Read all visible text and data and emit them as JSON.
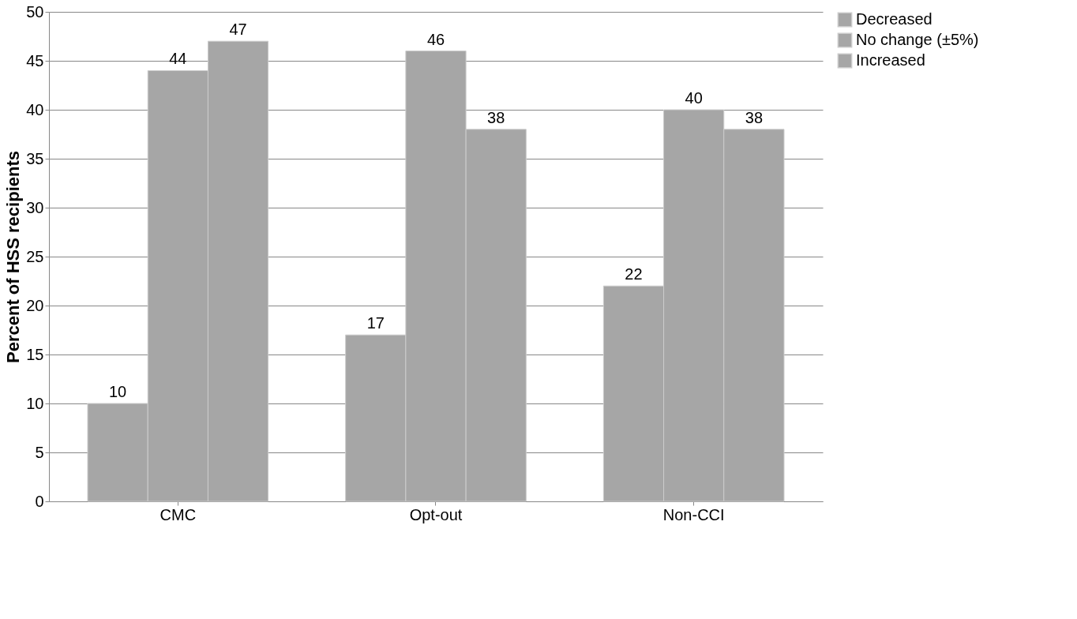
{
  "chart_data": {
    "type": "bar",
    "ylabel": "Percent of HSS recipients",
    "categories": [
      "CMC",
      "Opt-out",
      "Non-CCI"
    ],
    "series": [
      {
        "name": "Decreased",
        "color": "#a6a6a6",
        "values": [
          10,
          17,
          22
        ]
      },
      {
        "name": "No change (±5%)",
        "color": "#a6a6a6",
        "values": [
          44,
          46,
          40
        ]
      },
      {
        "name": "Increased",
        "color": "#a6a6a6",
        "values": [
          47,
          38,
          38
        ]
      }
    ],
    "ylim": [
      0,
      50
    ],
    "yticks": [
      0,
      5,
      10,
      15,
      20,
      25,
      30,
      35,
      40,
      45,
      50
    ],
    "grid": "y",
    "legend": "right",
    "data_labels": true
  }
}
